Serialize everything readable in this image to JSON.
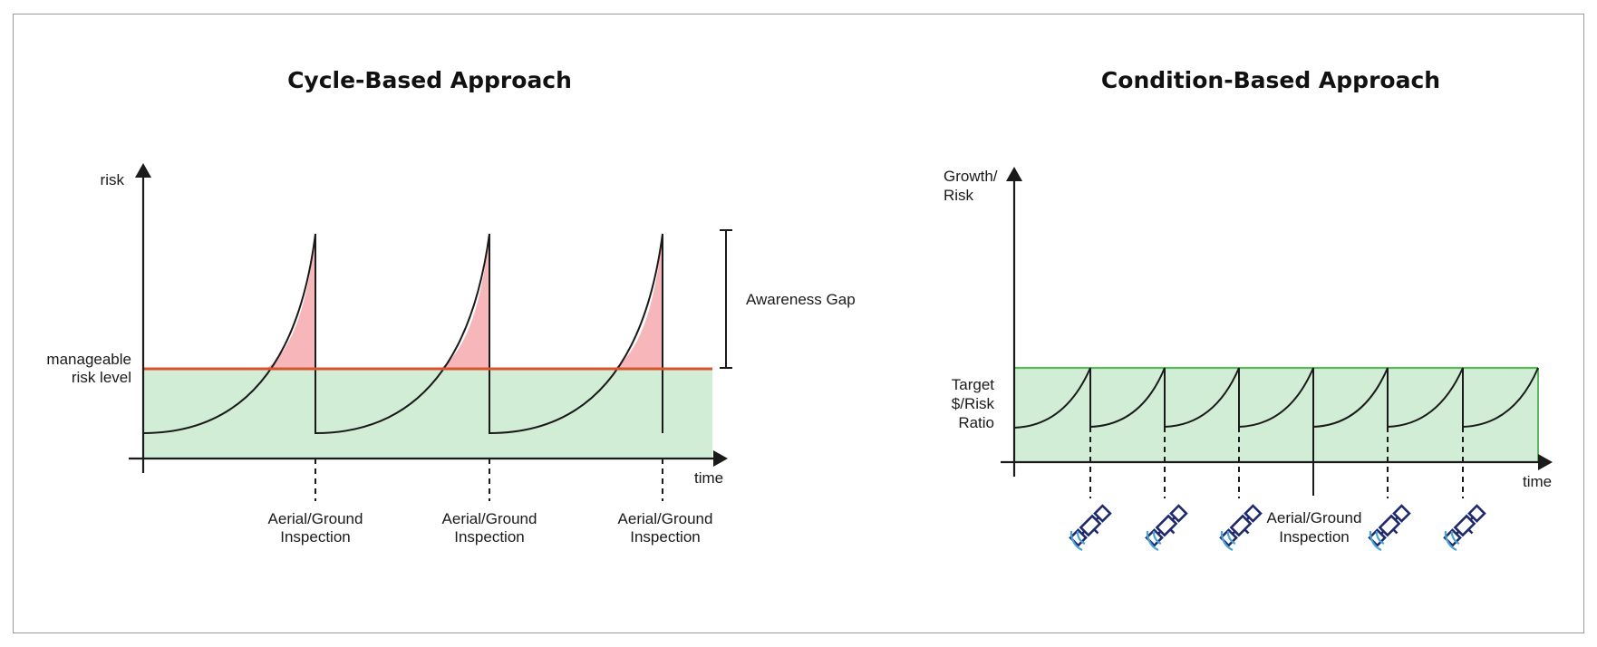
{
  "left_panel": {
    "title": "Cycle-Based Approach",
    "y_axis_label": "risk",
    "x_axis_label": "time",
    "threshold_label_line1": "manageable",
    "threshold_label_line2": "risk level",
    "gap_label": "Awareness Gap",
    "event_label_line1": "Aerial/Ground",
    "event_label_line2": "Inspection",
    "threshold_color": "#d9532b",
    "safe_fill": "#d2edd6",
    "risk_fill": "#f7b7ba"
  },
  "right_panel": {
    "title": "Condition-Based Approach",
    "y_axis_label_line1": "Growth/",
    "y_axis_label_line2": "Risk",
    "x_axis_label": "time",
    "target_label_line1": "Target",
    "target_label_line2": "$/Risk",
    "target_label_line3": "Ratio",
    "event_label_line1": "Aerial/Ground",
    "event_label_line2": "Inspection",
    "target_color": "#5cb85c",
    "safe_fill": "#d2edd6",
    "event_icon": "satellite-icon"
  }
}
